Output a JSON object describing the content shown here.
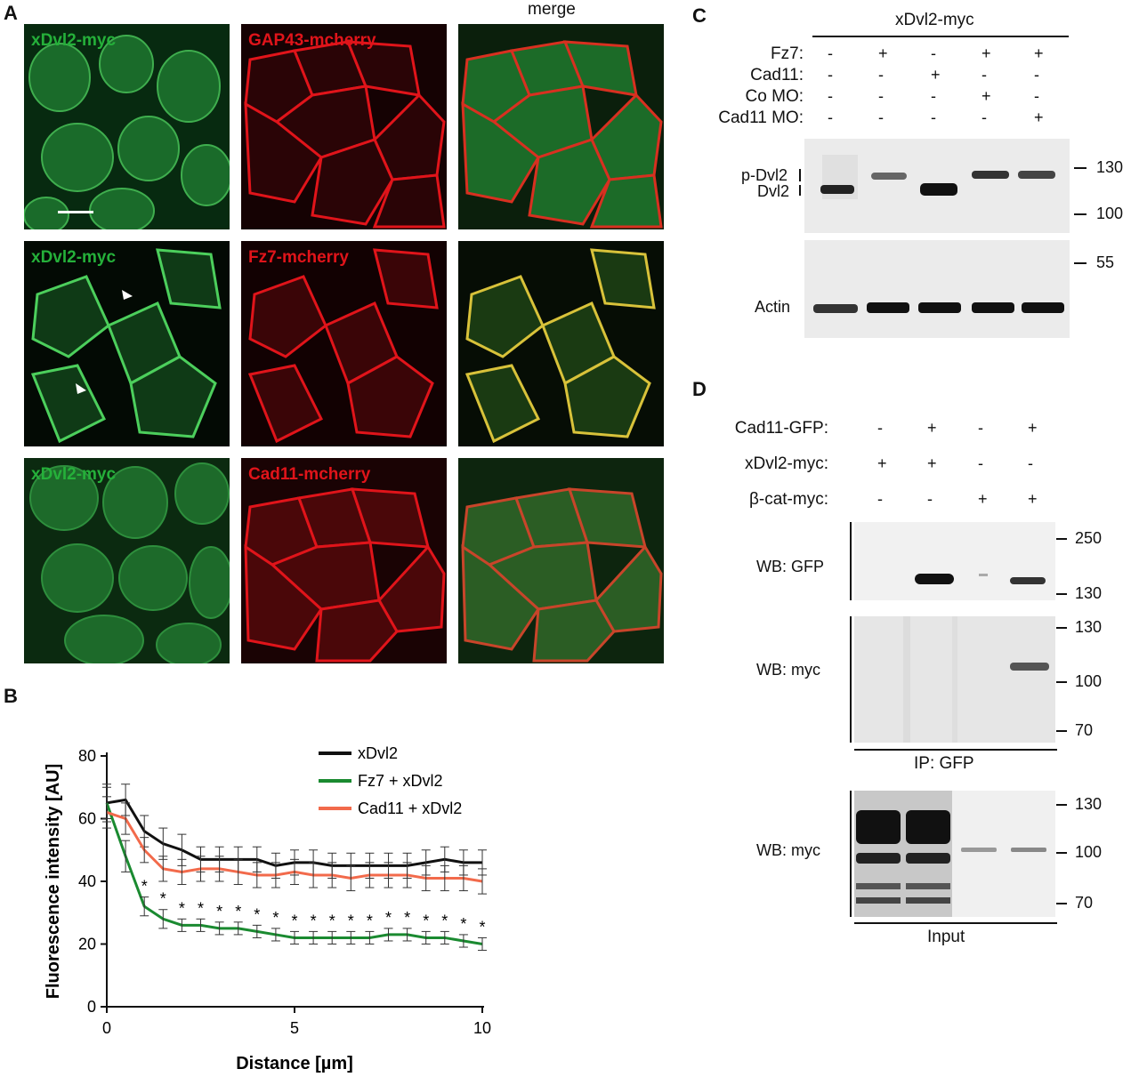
{
  "panels": {
    "A": "A",
    "B": "B",
    "C": "C",
    "D": "D"
  },
  "panel_a": {
    "merge_title": "merge",
    "rows": [
      {
        "green_label": "xDvl2-myc",
        "red_label": "GAP43-mcherry"
      },
      {
        "green_label": "xDvl2-myc",
        "red_label": "Fz7-mcherry"
      },
      {
        "green_label": "xDvl2-myc",
        "red_label": "Cad11-mcherry"
      }
    ]
  },
  "chart_data": {
    "type": "line",
    "xlabel": "Distance [µm]",
    "ylabel": "Fluorescence intensity [AU]",
    "xlim": [
      0,
      10
    ],
    "ylim": [
      0,
      80
    ],
    "xticks": [
      0,
      5,
      10
    ],
    "yticks": [
      0,
      20,
      40,
      60,
      80
    ],
    "grid": false,
    "legend_position": "top-right",
    "x": [
      0,
      0.5,
      1,
      1.5,
      2,
      2.5,
      3,
      3.5,
      4,
      4.5,
      5,
      5.5,
      6,
      6.5,
      7,
      7.5,
      8,
      8.5,
      9,
      9.5,
      10
    ],
    "series": [
      {
        "name": "xDvl2",
        "color": "#111111",
        "values": [
          65,
          66,
          56,
          52,
          50,
          47,
          47,
          47,
          47,
          45,
          46,
          46,
          45,
          45,
          45,
          45,
          45,
          46,
          47,
          46,
          46
        ],
        "errors": [
          6,
          5,
          5,
          5,
          5,
          4,
          4,
          4,
          4,
          4,
          4,
          4,
          4,
          4,
          4,
          4,
          4,
          4,
          4,
          4,
          4
        ]
      },
      {
        "name": "Fz7 + xDvl2",
        "color": "#1a8a30",
        "values": [
          65,
          48,
          32,
          28,
          26,
          26,
          25,
          25,
          24,
          23,
          22,
          22,
          22,
          22,
          22,
          23,
          23,
          22,
          22,
          21,
          20
        ],
        "errors": [
          5,
          5,
          3,
          3,
          2,
          2,
          2,
          2,
          2,
          2,
          2,
          2,
          2,
          2,
          2,
          2,
          2,
          2,
          2,
          2,
          2
        ]
      },
      {
        "name": "Cad11 + xDvl2",
        "color": "#f26a4b",
        "values": [
          62,
          60,
          50,
          44,
          43,
          44,
          44,
          43,
          42,
          42,
          43,
          42,
          42,
          41,
          42,
          42,
          42,
          41,
          41,
          41,
          40
        ],
        "errors": [
          5,
          5,
          4,
          4,
          4,
          4,
          4,
          4,
          4,
          4,
          4,
          4,
          4,
          4,
          4,
          4,
          4,
          4,
          4,
          4,
          4
        ]
      }
    ],
    "significance": {
      "marker": "*",
      "x": [
        1,
        1.5,
        2,
        2.5,
        3,
        3.5,
        4,
        4.5,
        5,
        5.5,
        6,
        6.5,
        7,
        7.5,
        8,
        8.5,
        9,
        9.5,
        10
      ]
    }
  },
  "panel_c": {
    "header": "xDvl2-myc",
    "conditions": [
      {
        "label": "Fz7:",
        "signs": [
          "-",
          "+",
          "-",
          "+",
          "+"
        ]
      },
      {
        "label": "Cad11:",
        "signs": [
          "-",
          "-",
          "+",
          "-",
          "-"
        ]
      },
      {
        "label": "Co MO:",
        "signs": [
          "-",
          "-",
          "-",
          "+",
          "-"
        ]
      },
      {
        "label": "Cad11 MO:",
        "signs": [
          "-",
          "-",
          "-",
          "-",
          "+"
        ]
      }
    ],
    "band_labels": {
      "pdvl2": "p-Dvl2",
      "dvl2": "Dvl2",
      "actin": "Actin"
    },
    "mw_top": [
      "130",
      "100"
    ],
    "mw_bottom": [
      "55"
    ]
  },
  "panel_d": {
    "conditions": [
      {
        "label": "Cad11-GFP:",
        "signs": [
          "-",
          "+",
          "-",
          "+"
        ]
      },
      {
        "label": "xDvl2-myc:",
        "signs": [
          "+",
          "+",
          "-",
          "-"
        ]
      },
      {
        "label": "β-cat-myc:",
        "signs": [
          "-",
          "-",
          "+",
          "+"
        ]
      }
    ],
    "blots": [
      {
        "label": "WB: GFP",
        "mw": [
          "250",
          "130"
        ]
      },
      {
        "label": "WB: myc",
        "mw": [
          "130",
          "100",
          "70"
        ]
      },
      {
        "label": "WB: myc",
        "mw": [
          "130",
          "100",
          "70"
        ]
      }
    ],
    "ip_label": "IP: GFP",
    "input_label": "Input"
  }
}
